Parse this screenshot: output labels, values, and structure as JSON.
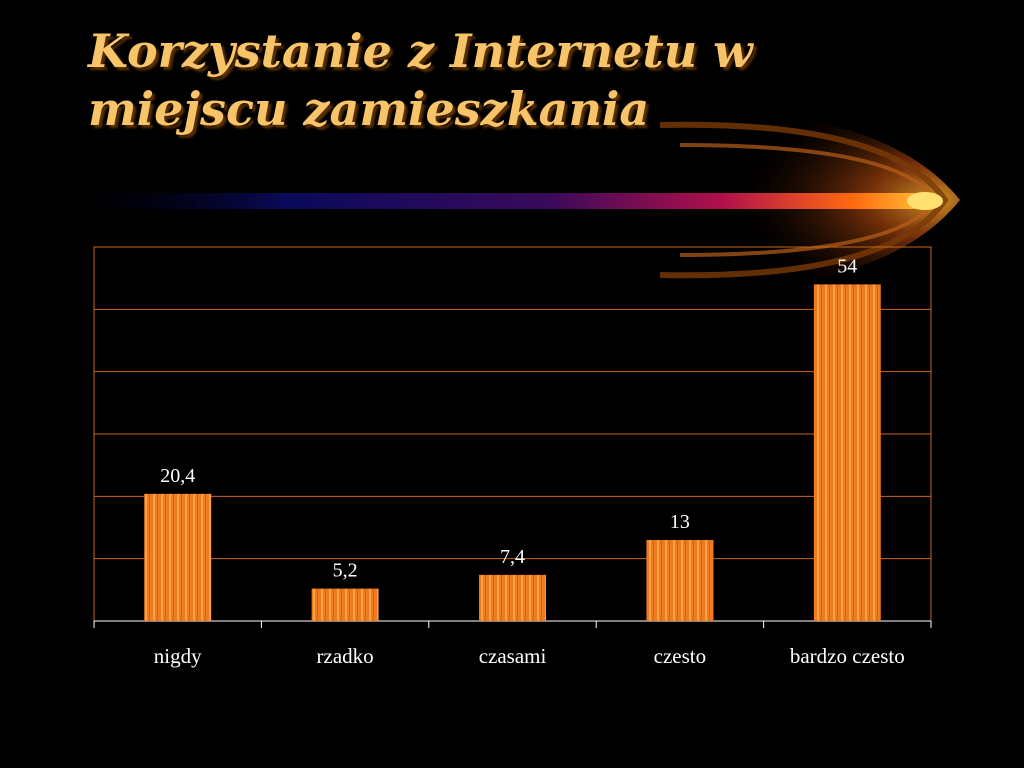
{
  "slide": {
    "title": "Korzystanie z Internetu w\nmiejscu zamieszkania"
  },
  "colors": {
    "background": "#000000",
    "bar": "#f07a1e",
    "bar_light": "#f8a14a",
    "grid": "#c9671f",
    "title": "#f7c46a"
  },
  "chart_data": {
    "type": "bar",
    "categories": [
      "nigdy",
      "rzadko",
      "czasami",
      "czesto",
      "bardzo czesto"
    ],
    "values": [
      20.4,
      5.2,
      7.4,
      13,
      54
    ],
    "data_labels": [
      "20,4",
      "5,2",
      "7,4",
      "13",
      "54"
    ],
    "title": "",
    "xlabel": "",
    "ylabel": "",
    "ylim": [
      0,
      60
    ],
    "grid": true,
    "gridline_step": 10,
    "legend": "none"
  }
}
